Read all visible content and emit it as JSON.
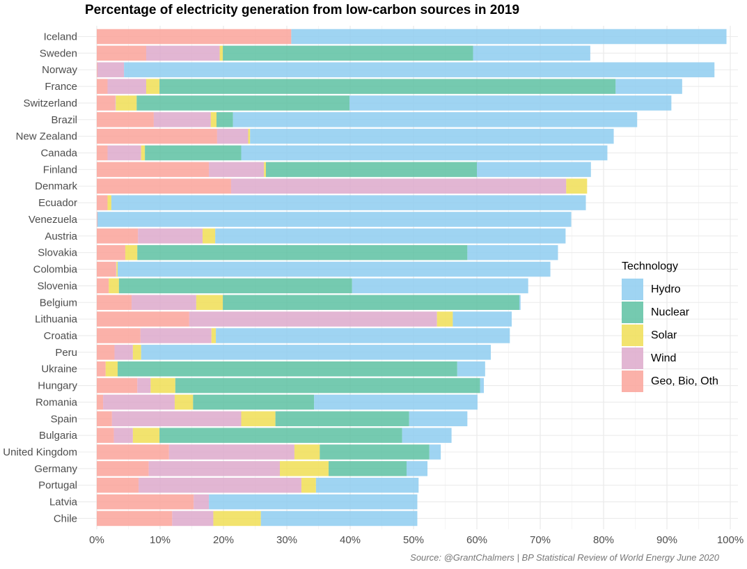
{
  "chart_data": {
    "type": "bar",
    "orientation": "horizontal",
    "stacked": true,
    "title": "Percentage of electricity generation from low-carbon sources in 2019",
    "caption": "Source: @GrantChalmers | BP Statistical Review of World Energy June 2020",
    "xlim": [
      0,
      100
    ],
    "x_ticks": [
      "0%",
      "10%",
      "20%",
      "30%",
      "40%",
      "50%",
      "60%",
      "70%",
      "80%",
      "90%",
      "100%"
    ],
    "grid": true,
    "legend": {
      "title": "Technology",
      "position": "right",
      "entries": [
        "Hydro",
        "Nuclear",
        "Solar",
        "Wind",
        "Geo, Bio, Oth"
      ]
    },
    "categories": [
      "Iceland",
      "Sweden",
      "Norway",
      "France",
      "Switzerland",
      "Brazil",
      "New Zealand",
      "Canada",
      "Finland",
      "Denmark",
      "Ecuador",
      "Venezuela",
      "Austria",
      "Slovakia",
      "Colombia",
      "Slovenia",
      "Belgium",
      "Lithuania",
      "Croatia",
      "Peru",
      "Ukraine",
      "Hungary",
      "Romania",
      "Spain",
      "Bulgaria",
      "United Kingdom",
      "Germany",
      "Portugal",
      "Latvia",
      "Chile"
    ],
    "series": [
      {
        "name": "Geo, Bio, Oth",
        "color": "#FAA39A",
        "values": [
          30.7,
          7.8,
          0.1,
          1.7,
          2.9,
          9.0,
          19.0,
          1.7,
          17.7,
          21.2,
          1.7,
          0.1,
          6.5,
          4.5,
          3.0,
          1.9,
          5.5,
          14.6,
          6.9,
          2.8,
          1.4,
          6.4,
          1.0,
          2.4,
          2.7,
          11.4,
          8.2,
          6.6,
          15.3,
          11.9
        ]
      },
      {
        "name": "Wind",
        "color": "#DDA9CB",
        "values": [
          0.0,
          11.6,
          4.2,
          6.1,
          0.1,
          9.0,
          4.9,
          5.3,
          8.7,
          52.9,
          0.0,
          0.0,
          10.2,
          0.0,
          0.1,
          0.0,
          10.2,
          39.1,
          11.2,
          2.9,
          0.0,
          2.1,
          11.3,
          20.4,
          3.0,
          19.8,
          20.7,
          25.7,
          2.4,
          6.5
        ]
      },
      {
        "name": "Solar",
        "color": "#F0DE55",
        "values": [
          0.0,
          0.5,
          0.0,
          2.1,
          3.3,
          0.9,
          0.3,
          0.6,
          0.3,
          3.3,
          0.6,
          0.0,
          2.0,
          1.9,
          0.2,
          1.6,
          4.2,
          2.5,
          0.7,
          1.3,
          1.9,
          3.9,
          2.9,
          5.4,
          4.2,
          4.0,
          7.7,
          2.3,
          0.0,
          7.5
        ]
      },
      {
        "name": "Nuclear",
        "color": "#5DC1A2",
        "values": [
          0.0,
          39.5,
          0.0,
          72.0,
          33.6,
          2.6,
          0.0,
          15.2,
          33.3,
          0.0,
          0.0,
          0.0,
          0.0,
          52.1,
          0.0,
          36.8,
          46.8,
          0.0,
          0.0,
          0.0,
          53.6,
          48.1,
          19.1,
          21.1,
          38.3,
          17.3,
          12.3,
          0.0,
          0.0,
          0.0
        ]
      },
      {
        "name": "Hydro",
        "color": "#8ECDF0",
        "values": [
          68.7,
          18.5,
          93.2,
          10.5,
          50.8,
          63.8,
          57.4,
          57.8,
          18.0,
          0.0,
          74.9,
          74.8,
          55.3,
          14.3,
          68.3,
          27.8,
          0.2,
          9.3,
          46.4,
          55.2,
          4.4,
          0.6,
          25.8,
          9.2,
          7.8,
          1.8,
          3.3,
          16.2,
          32.9,
          24.7
        ]
      }
    ]
  }
}
